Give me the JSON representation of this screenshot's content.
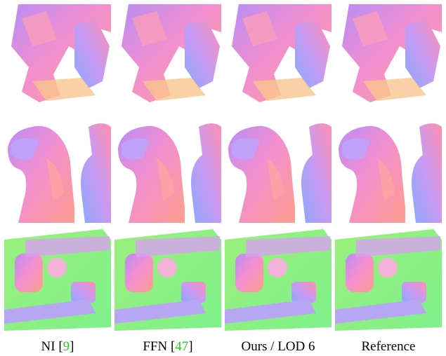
{
  "columns": [
    {
      "caption": [
        {
          "text": "NI ["
        },
        {
          "text": "9",
          "link": true
        },
        {
          "text": "]"
        }
      ]
    },
    {
      "caption": [
        {
          "text": "FFN ["
        },
        {
          "text": "47",
          "link": true
        },
        {
          "text": "]"
        }
      ]
    },
    {
      "caption": [
        {
          "text": "Ours / LOD 6"
        }
      ]
    },
    {
      "caption": [
        {
          "text": "Reference"
        }
      ]
    }
  ]
}
